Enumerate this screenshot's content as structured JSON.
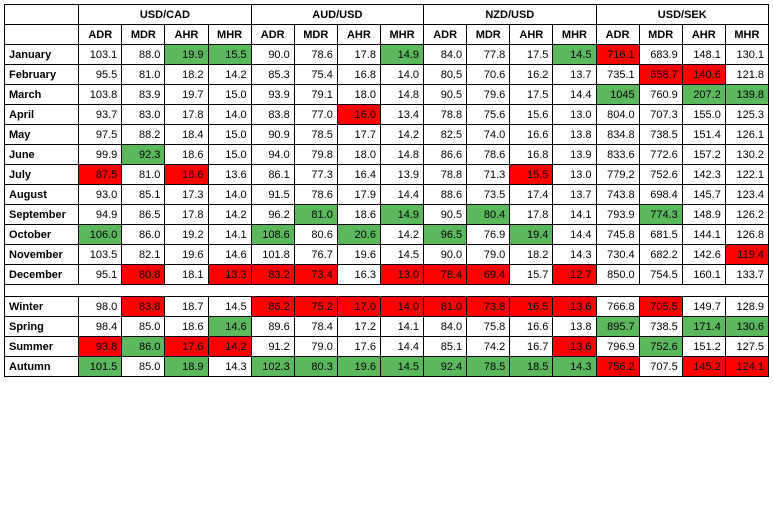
{
  "colors": {
    "highlight_high": "#5cb85c",
    "highlight_low": "#ff0000",
    "border": "#000000",
    "bg": "#ffffff"
  },
  "pairs": [
    "USD/CAD",
    "AUD/USD",
    "NZD/USD",
    "USD/SEK"
  ],
  "metrics": [
    "ADR",
    "MDR",
    "AHR",
    "MHR"
  ],
  "row_labels": {
    "months": [
      "January",
      "February",
      "March",
      "April",
      "May",
      "June",
      "July",
      "August",
      "September",
      "October",
      "November",
      "December"
    ],
    "seasons": [
      "Winter",
      "Spring",
      "Summer",
      "Autumn"
    ]
  },
  "months": [
    {
      "cells": [
        [
          103.1,
          null
        ],
        [
          88.0,
          null
        ],
        [
          19.9,
          "hi"
        ],
        [
          15.5,
          "hi"
        ],
        [
          90.0,
          null
        ],
        [
          78.6,
          null
        ],
        [
          17.8,
          null
        ],
        [
          14.9,
          "hi"
        ],
        [
          84.0,
          null
        ],
        [
          77.8,
          null
        ],
        [
          17.5,
          null
        ],
        [
          14.5,
          "hi"
        ],
        [
          716.1,
          "lo"
        ],
        [
          683.9,
          null
        ],
        [
          148.1,
          null
        ],
        [
          130.1,
          null
        ]
      ]
    },
    {
      "cells": [
        [
          95.5,
          null
        ],
        [
          81.0,
          null
        ],
        [
          18.2,
          null
        ],
        [
          14.2,
          null
        ],
        [
          85.3,
          null
        ],
        [
          75.4,
          null
        ],
        [
          16.8,
          null
        ],
        [
          14.0,
          null
        ],
        [
          80.5,
          null
        ],
        [
          70.6,
          null
        ],
        [
          16.2,
          null
        ],
        [
          13.7,
          null
        ],
        [
          735.1,
          null
        ],
        [
          658.7,
          "lo"
        ],
        [
          140.6,
          "lo"
        ],
        [
          121.8,
          null
        ]
      ]
    },
    {
      "cells": [
        [
          103.8,
          null
        ],
        [
          83.9,
          null
        ],
        [
          19.7,
          null
        ],
        [
          15.0,
          null
        ],
        [
          93.9,
          null
        ],
        [
          79.1,
          null
        ],
        [
          18.0,
          null
        ],
        [
          14.8,
          null
        ],
        [
          90.5,
          null
        ],
        [
          79.6,
          null
        ],
        [
          17.5,
          null
        ],
        [
          14.4,
          null
        ],
        [
          1045,
          "hi"
        ],
        [
          760.9,
          null
        ],
        [
          207.2,
          "hi"
        ],
        [
          139.8,
          "hi"
        ]
      ]
    },
    {
      "cells": [
        [
          93.7,
          null
        ],
        [
          83.0,
          null
        ],
        [
          17.8,
          null
        ],
        [
          14.0,
          null
        ],
        [
          83.8,
          null
        ],
        [
          77.0,
          null
        ],
        [
          16.0,
          "lo"
        ],
        [
          13.4,
          null
        ],
        [
          78.8,
          null
        ],
        [
          75.6,
          null
        ],
        [
          15.6,
          null
        ],
        [
          13.0,
          null
        ],
        [
          804.0,
          null
        ],
        [
          707.3,
          null
        ],
        [
          155.0,
          null
        ],
        [
          125.3,
          null
        ]
      ]
    },
    {
      "cells": [
        [
          97.5,
          null
        ],
        [
          88.2,
          null
        ],
        [
          18.4,
          null
        ],
        [
          15.0,
          null
        ],
        [
          90.9,
          null
        ],
        [
          78.5,
          null
        ],
        [
          17.7,
          null
        ],
        [
          14.2,
          null
        ],
        [
          82.5,
          null
        ],
        [
          74.0,
          null
        ],
        [
          16.6,
          null
        ],
        [
          13.8,
          null
        ],
        [
          834.8,
          null
        ],
        [
          738.5,
          null
        ],
        [
          151.4,
          null
        ],
        [
          126.1,
          null
        ]
      ]
    },
    {
      "cells": [
        [
          99.9,
          null
        ],
        [
          92.3,
          "hi"
        ],
        [
          18.6,
          null
        ],
        [
          15.0,
          null
        ],
        [
          94.0,
          null
        ],
        [
          79.8,
          null
        ],
        [
          18.0,
          null
        ],
        [
          14.8,
          null
        ],
        [
          86.6,
          null
        ],
        [
          78.6,
          null
        ],
        [
          16.8,
          null
        ],
        [
          13.9,
          null
        ],
        [
          833.6,
          null
        ],
        [
          772.6,
          null
        ],
        [
          157.2,
          null
        ],
        [
          130.2,
          null
        ]
      ]
    },
    {
      "cells": [
        [
          87.5,
          "lo"
        ],
        [
          81.0,
          null
        ],
        [
          16.6,
          "lo"
        ],
        [
          13.6,
          null
        ],
        [
          86.1,
          null
        ],
        [
          77.3,
          null
        ],
        [
          16.4,
          null
        ],
        [
          13.9,
          null
        ],
        [
          78.8,
          null
        ],
        [
          71.3,
          null
        ],
        [
          15.5,
          "lo"
        ],
        [
          13.0,
          null
        ],
        [
          779.2,
          null
        ],
        [
          752.6,
          null
        ],
        [
          142.3,
          null
        ],
        [
          122.1,
          null
        ]
      ]
    },
    {
      "cells": [
        [
          93.0,
          null
        ],
        [
          85.1,
          null
        ],
        [
          17.3,
          null
        ],
        [
          14.0,
          null
        ],
        [
          91.5,
          null
        ],
        [
          78.6,
          null
        ],
        [
          17.9,
          null
        ],
        [
          14.4,
          null
        ],
        [
          88.6,
          null
        ],
        [
          73.5,
          null
        ],
        [
          17.4,
          null
        ],
        [
          13.7,
          null
        ],
        [
          743.8,
          null
        ],
        [
          698.4,
          null
        ],
        [
          145.7,
          null
        ],
        [
          123.4,
          null
        ]
      ]
    },
    {
      "cells": [
        [
          94.9,
          null
        ],
        [
          86.5,
          null
        ],
        [
          17.8,
          null
        ],
        [
          14.2,
          null
        ],
        [
          96.2,
          null
        ],
        [
          81.0,
          "hi"
        ],
        [
          18.6,
          null
        ],
        [
          14.9,
          "hi"
        ],
        [
          90.5,
          null
        ],
        [
          80.4,
          "hi"
        ],
        [
          17.8,
          null
        ],
        [
          14.1,
          null
        ],
        [
          793.9,
          null
        ],
        [
          774.3,
          "hi"
        ],
        [
          148.9,
          null
        ],
        [
          126.2,
          null
        ]
      ]
    },
    {
      "cells": [
        [
          106.0,
          "hi"
        ],
        [
          86.0,
          null
        ],
        [
          19.2,
          null
        ],
        [
          14.1,
          null
        ],
        [
          108.6,
          "hi"
        ],
        [
          80.6,
          null
        ],
        [
          20.6,
          "hi"
        ],
        [
          14.2,
          null
        ],
        [
          96.5,
          "hi"
        ],
        [
          76.9,
          null
        ],
        [
          19.4,
          "hi"
        ],
        [
          14.4,
          null
        ],
        [
          745.8,
          null
        ],
        [
          681.5,
          null
        ],
        [
          144.1,
          null
        ],
        [
          126.8,
          null
        ]
      ]
    },
    {
      "cells": [
        [
          103.5,
          null
        ],
        [
          82.1,
          null
        ],
        [
          19.6,
          null
        ],
        [
          14.6,
          null
        ],
        [
          101.8,
          null
        ],
        [
          76.7,
          null
        ],
        [
          19.6,
          null
        ],
        [
          14.5,
          null
        ],
        [
          90.0,
          null
        ],
        [
          79.0,
          null
        ],
        [
          18.2,
          null
        ],
        [
          14.3,
          null
        ],
        [
          730.4,
          null
        ],
        [
          682.2,
          null
        ],
        [
          142.6,
          null
        ],
        [
          119.4,
          "lo"
        ]
      ]
    },
    {
      "cells": [
        [
          95.1,
          null
        ],
        [
          80.8,
          "lo"
        ],
        [
          18.1,
          null
        ],
        [
          13.3,
          "lo"
        ],
        [
          83.2,
          "lo"
        ],
        [
          73.4,
          "lo"
        ],
        [
          16.3,
          null
        ],
        [
          13.0,
          "lo"
        ],
        [
          78.4,
          "lo"
        ],
        [
          69.4,
          "lo"
        ],
        [
          15.7,
          null
        ],
        [
          12.7,
          "lo"
        ],
        [
          850.0,
          null
        ],
        [
          754.5,
          null
        ],
        [
          160.1,
          null
        ],
        [
          133.7,
          null
        ]
      ]
    }
  ],
  "seasons": [
    {
      "cells": [
        [
          98.0,
          null
        ],
        [
          83.8,
          "lo"
        ],
        [
          18.7,
          null
        ],
        [
          14.5,
          null
        ],
        [
          86.2,
          "lo"
        ],
        [
          75.2,
          "lo"
        ],
        [
          17.0,
          "lo"
        ],
        [
          14.0,
          "lo"
        ],
        [
          81.0,
          "lo"
        ],
        [
          73.8,
          "lo"
        ],
        [
          16.5,
          "lo"
        ],
        [
          13.6,
          "lo"
        ],
        [
          766.8,
          null
        ],
        [
          705.5,
          "lo"
        ],
        [
          149.7,
          null
        ],
        [
          128.9,
          null
        ]
      ]
    },
    {
      "cells": [
        [
          98.4,
          null
        ],
        [
          85.0,
          null
        ],
        [
          18.6,
          null
        ],
        [
          14.6,
          "hi"
        ],
        [
          89.6,
          null
        ],
        [
          78.4,
          null
        ],
        [
          17.2,
          null
        ],
        [
          14.1,
          null
        ],
        [
          84.0,
          null
        ],
        [
          75.8,
          null
        ],
        [
          16.6,
          null
        ],
        [
          13.8,
          null
        ],
        [
          895.7,
          "hi"
        ],
        [
          738.5,
          null
        ],
        [
          171.4,
          "hi"
        ],
        [
          130.6,
          "hi"
        ]
      ]
    },
    {
      "cells": [
        [
          93.8,
          "lo"
        ],
        [
          86.0,
          "hi"
        ],
        [
          17.6,
          "lo"
        ],
        [
          14.2,
          "lo"
        ],
        [
          91.2,
          null
        ],
        [
          79.0,
          null
        ],
        [
          17.6,
          null
        ],
        [
          14.4,
          null
        ],
        [
          85.1,
          null
        ],
        [
          74.2,
          null
        ],
        [
          16.7,
          null
        ],
        [
          13.6,
          "lo"
        ],
        [
          796.9,
          null
        ],
        [
          752.6,
          "hi"
        ],
        [
          151.2,
          null
        ],
        [
          127.5,
          null
        ]
      ]
    },
    {
      "cells": [
        [
          101.5,
          "hi"
        ],
        [
          85.0,
          null
        ],
        [
          18.9,
          "hi"
        ],
        [
          14.3,
          null
        ],
        [
          102.3,
          "hi"
        ],
        [
          80.3,
          "hi"
        ],
        [
          19.6,
          "hi"
        ],
        [
          14.5,
          "hi"
        ],
        [
          92.4,
          "hi"
        ],
        [
          78.5,
          "hi"
        ],
        [
          18.5,
          "hi"
        ],
        [
          14.3,
          "hi"
        ],
        [
          756.2,
          "lo"
        ],
        [
          707.5,
          null
        ],
        [
          145.2,
          "lo"
        ],
        [
          124.1,
          "lo"
        ]
      ]
    }
  ]
}
